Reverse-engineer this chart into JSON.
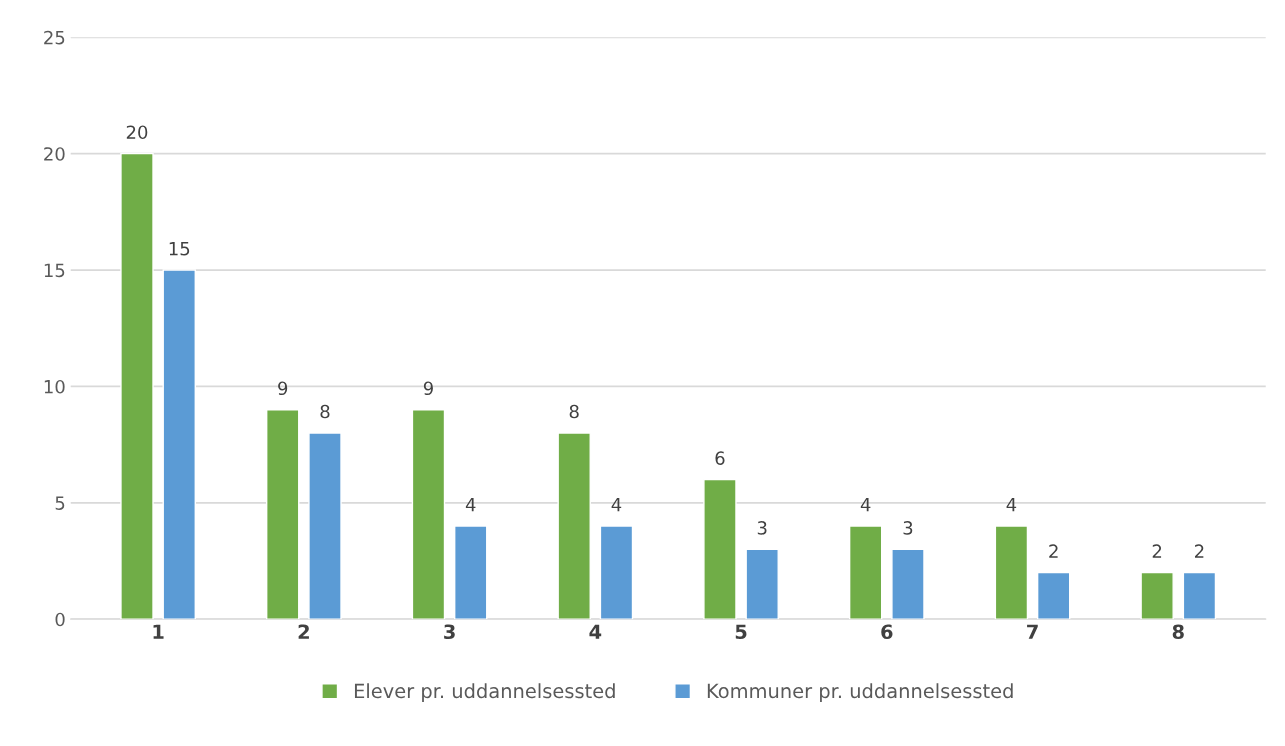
{
  "chart_data": {
    "type": "bar",
    "categories": [
      "1",
      "2",
      "3",
      "4",
      "5",
      "6",
      "7",
      "8"
    ],
    "series": [
      {
        "name": "Elever pr. uddannelsessted",
        "color": "#70ad47",
        "values": [
          20,
          9,
          9,
          8,
          6,
          4,
          4,
          2
        ]
      },
      {
        "name": "Kommuner pr. uddannelsessted",
        "color": "#5b9bd5",
        "values": [
          15,
          8,
          4,
          4,
          3,
          3,
          2,
          2
        ]
      }
    ],
    "ylim": [
      0,
      25
    ],
    "yticks": [
      0,
      5,
      10,
      15,
      20,
      25
    ],
    "grid": "y",
    "legend": "bottom",
    "data_labels": true
  }
}
